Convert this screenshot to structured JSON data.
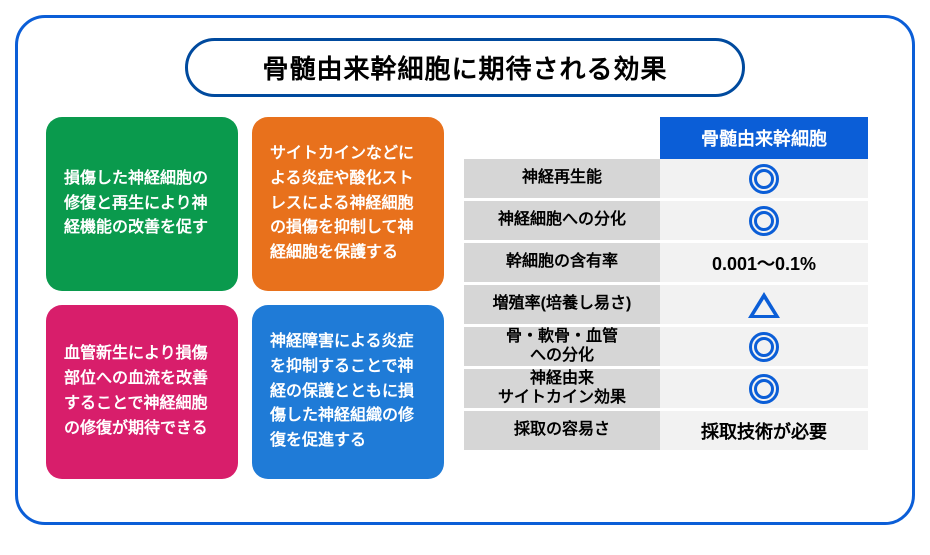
{
  "title": "骨髄由来幹細胞に期待される効果",
  "colors": {
    "border": "#0b5ed7",
    "title_border": "#004a9e",
    "table_header_bg": "#0b5ed7",
    "row_label_bg": "#d6d6d6",
    "row_value_bg": "#f2f2f2",
    "symbol": "#0b5ed7"
  },
  "cards": [
    {
      "text": "損傷した神経細胞の修復と再生により神経機能の改善を促す",
      "bg": "#0a9a4d"
    },
    {
      "text": "サイトカインなどによる炎症や酸化ストレスによる神経細胞の損傷を抑制して神経細胞を保護する",
      "bg": "#e8711c"
    },
    {
      "text": "血管新生により損傷部位への血流を改善することで神経細胞の修復が期待できる",
      "bg": "#d81e6b"
    },
    {
      "text": "神経障害による炎症を抑制することで神経の保護とともに損傷した神経組織の修復を促進する",
      "bg": "#1f7bd7"
    }
  ],
  "table": {
    "header": "骨髄由来幹細胞",
    "rows": [
      {
        "label": "神経再生能",
        "value_type": "double-circle"
      },
      {
        "label": "神経細胞への分化",
        "value_type": "double-circle"
      },
      {
        "label": "幹細胞の含有率",
        "value_type": "text",
        "value": "0.001～0.1%"
      },
      {
        "label": "増殖率(培養し易さ)",
        "value_type": "triangle"
      },
      {
        "label": "骨・軟骨・血管\nへの分化",
        "value_type": "double-circle"
      },
      {
        "label": "神経由来\nサイトカイン効果",
        "value_type": "double-circle"
      },
      {
        "label": "採取の容易さ",
        "value_type": "text",
        "value": "採取技術が必要"
      }
    ]
  }
}
